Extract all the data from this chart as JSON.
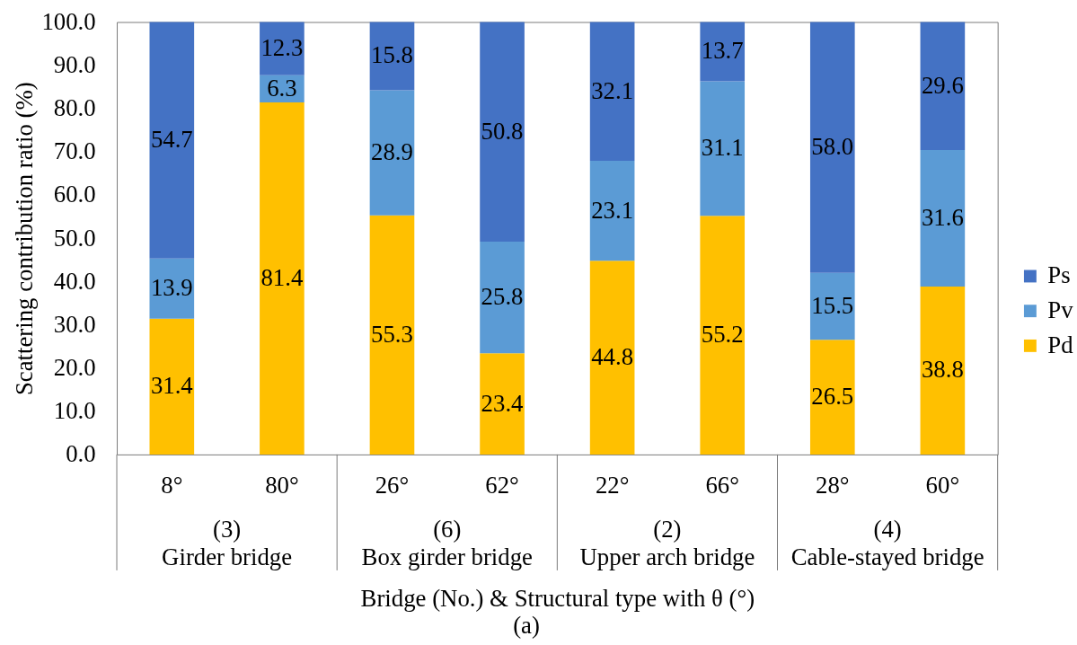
{
  "chart_data": {
    "type": "bar",
    "stacked": true,
    "categories": [
      "8°",
      "80°",
      "26°",
      "62°",
      "22°",
      "66°",
      "28°",
      "60°"
    ],
    "series": [
      {
        "name": "Pd",
        "color": "#ffc000",
        "values": [
          31.4,
          81.4,
          55.3,
          23.4,
          44.8,
          55.2,
          26.5,
          38.8
        ],
        "value_labels": [
          "31.4",
          "81.4",
          "55.3",
          "23.4",
          "44.8",
          "55.2",
          "26.5",
          "38.8"
        ]
      },
      {
        "name": "Pv",
        "color": "#5b9bd5",
        "values": [
          13.9,
          6.3,
          28.9,
          25.8,
          23.1,
          31.1,
          15.5,
          31.6
        ],
        "value_labels": [
          "13.9",
          "6.3",
          "28.9",
          "25.8",
          "23.1",
          "31.1",
          "15.5",
          "31.6"
        ]
      },
      {
        "name": "Ps",
        "color": "#4472c4",
        "values": [
          54.7,
          12.3,
          15.8,
          50.8,
          32.1,
          13.7,
          58.0,
          29.6
        ],
        "value_labels": [
          "54.7",
          "12.3",
          "15.8",
          "50.8",
          "32.1",
          "13.7",
          "58.0",
          "29.6"
        ]
      }
    ],
    "ylim": [
      0,
      100
    ],
    "yticks": [
      {
        "value": 0,
        "label": "0.0"
      },
      {
        "value": 10,
        "label": "10.0"
      },
      {
        "value": 20,
        "label": "20.0"
      },
      {
        "value": 30,
        "label": "30.0"
      },
      {
        "value": 40,
        "label": "40.0"
      },
      {
        "value": 50,
        "label": "50.0"
      },
      {
        "value": 60,
        "label": "60.0"
      },
      {
        "value": 70,
        "label": "70.0"
      },
      {
        "value": 80,
        "label": "80.0"
      },
      {
        "value": 90,
        "label": "90.0"
      },
      {
        "value": 100,
        "label": "100.0"
      }
    ],
    "ylabel": "Scattering contribution ratio (%)",
    "xlabel": "Bridge (No.) & Structural type with θ (°)",
    "annotations": [
      "(3)",
      "Girder bridge",
      "(6)",
      "Box girder bridge",
      "(2)",
      "Upper arch bridge",
      "(4)",
      "Cable-stayed bridge",
      "(a)"
    ],
    "legend": "right"
  }
}
